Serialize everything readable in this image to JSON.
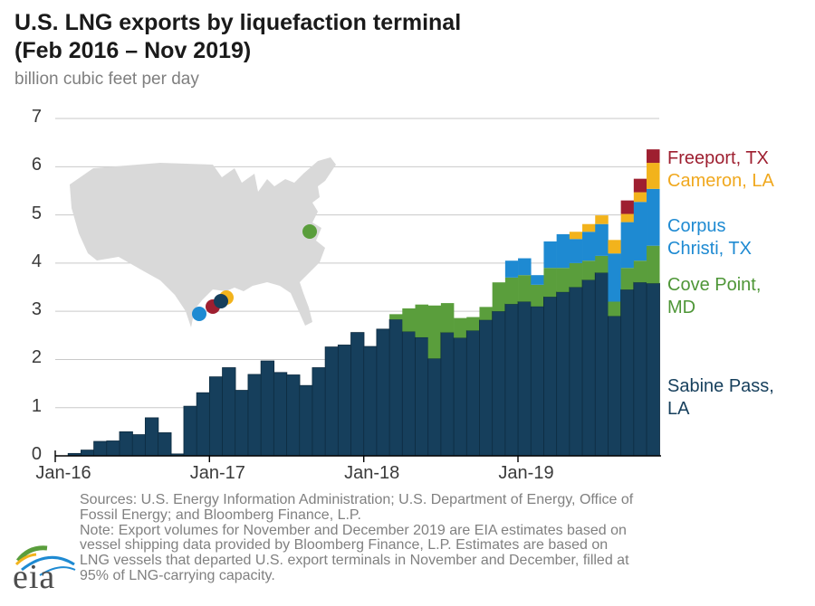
{
  "header": {
    "title_line1": "U.S. LNG exports by liquefaction terminal",
    "title_line2": "(Feb 2016 – Nov 2019)",
    "subtitle": "billion cubic feet per day"
  },
  "legend": {
    "items": [
      {
        "line1": "Freeport, TX",
        "line2": "",
        "color": "#9e1f30"
      },
      {
        "line1": "Cameron, LA",
        "line2": "",
        "color": "#f0a81e"
      },
      {
        "line1": "Corpus",
        "line2": "Christi, TX",
        "color": "#1e8ad2"
      },
      {
        "line1": "Cove Point,",
        "line2": "MD",
        "color": "#4e9637"
      },
      {
        "line1": "Sabine Pass,",
        "line2": "LA",
        "color": "#163f5c"
      }
    ]
  },
  "footer": {
    "lines": [
      "Sources: U.S. Energy Information Administration; U.S. Department of Energy, Office of",
      "Fossil Energy; and Bloomberg Finance, L.P.",
      "Note: Export volumes for November and December 2019 are EIA estimates based on",
      "vessel shipping data provided by Bloomberg Finance, L.P. Estimates are based on",
      "LNG vessels that departed U.S. export terminals in November and December, filled at",
      "95% of LNG-carrying capacity."
    ]
  },
  "logo": {
    "text": "eia"
  },
  "chart_data": {
    "type": "bar",
    "stacked": true,
    "title": "U.S. LNG exports by liquefaction terminal (Feb 2016 – Nov 2019)",
    "ylabel": "billion cubic feet per day",
    "ylim": [
      0,
      7
    ],
    "grid": true,
    "y_ticks": [
      0,
      1,
      2,
      3,
      4,
      5,
      6,
      7
    ],
    "x_tick_labels": [
      "Jan-16",
      "Jan-17",
      "Jan-18",
      "Jan-19"
    ],
    "months": [
      "Feb-16",
      "Mar-16",
      "Apr-16",
      "May-16",
      "Jun-16",
      "Jul-16",
      "Aug-16",
      "Sep-16",
      "Oct-16",
      "Nov-16",
      "Dec-16",
      "Jan-17",
      "Feb-17",
      "Mar-17",
      "Apr-17",
      "May-17",
      "Jun-17",
      "Jul-17",
      "Aug-17",
      "Sep-17",
      "Oct-17",
      "Nov-17",
      "Dec-17",
      "Jan-18",
      "Feb-18",
      "Mar-18",
      "Apr-18",
      "May-18",
      "Jun-18",
      "Jul-18",
      "Aug-18",
      "Sep-18",
      "Oct-18",
      "Nov-18",
      "Dec-18",
      "Jan-19",
      "Feb-19",
      "Mar-19",
      "Apr-19",
      "May-19",
      "Jun-19",
      "Jul-19",
      "Aug-19",
      "Sep-19",
      "Oct-19",
      "Nov-19"
    ],
    "series": [
      {
        "name": "Sabine Pass, LA",
        "color": "#163f5c",
        "values": [
          0.05,
          0.12,
          0.3,
          0.31,
          0.5,
          0.44,
          0.79,
          0.48,
          0.04,
          1.03,
          1.31,
          1.64,
          1.83,
          1.36,
          1.69,
          1.97,
          1.73,
          1.68,
          1.46,
          1.83,
          2.26,
          2.3,
          2.56,
          2.27,
          2.63,
          2.83,
          2.58,
          2.46,
          2.02,
          2.56,
          2.45,
          2.6,
          2.82,
          3.0,
          3.15,
          3.2,
          3.1,
          3.3,
          3.4,
          3.5,
          3.65,
          3.8,
          2.9,
          3.45,
          3.6,
          3.58
        ]
      },
      {
        "name": "Cove Point, MD",
        "color": "#5a9e3c",
        "values": [
          0,
          0,
          0,
          0,
          0,
          0,
          0,
          0,
          0,
          0,
          0,
          0,
          0,
          0,
          0,
          0,
          0,
          0,
          0,
          0,
          0,
          0,
          0,
          0,
          0,
          0.11,
          0.48,
          0.68,
          1.1,
          0.61,
          0.41,
          0.28,
          0.27,
          0.6,
          0.55,
          0.55,
          0.45,
          0.6,
          0.5,
          0.5,
          0.4,
          0.35,
          0.3,
          0.45,
          0.45,
          0.78
        ]
      },
      {
        "name": "Corpus Christi, TX",
        "color": "#1e8ad2",
        "values": [
          0,
          0,
          0,
          0,
          0,
          0,
          0,
          0,
          0,
          0,
          0,
          0,
          0,
          0,
          0,
          0,
          0,
          0,
          0,
          0,
          0,
          0,
          0,
          0,
          0,
          0,
          0,
          0,
          0,
          0,
          0,
          0,
          0,
          0,
          0.35,
          0.35,
          0.2,
          0.55,
          0.7,
          0.5,
          0.6,
          0.66,
          1.0,
          0.95,
          1.22,
          1.18
        ]
      },
      {
        "name": "Cameron, LA",
        "color": "#f2b31c",
        "values": [
          0,
          0,
          0,
          0,
          0,
          0,
          0,
          0,
          0,
          0,
          0,
          0,
          0,
          0,
          0,
          0,
          0,
          0,
          0,
          0,
          0,
          0,
          0,
          0,
          0,
          0,
          0,
          0,
          0,
          0,
          0,
          0,
          0,
          0,
          0,
          0,
          0,
          0,
          0,
          0.15,
          0.16,
          0.18,
          0.28,
          0.17,
          0.2,
          0.54
        ]
      },
      {
        "name": "Freeport, TX",
        "color": "#9e1f30",
        "values": [
          0,
          0,
          0,
          0,
          0,
          0,
          0,
          0,
          0,
          0,
          0,
          0,
          0,
          0,
          0,
          0,
          0,
          0,
          0,
          0,
          0,
          0,
          0,
          0,
          0,
          0,
          0,
          0,
          0,
          0,
          0,
          0,
          0,
          0,
          0,
          0,
          0,
          0,
          0,
          0,
          0,
          0,
          0,
          0.28,
          0.28,
          0.28
        ]
      }
    ],
    "map": {
      "terminals": [
        {
          "name": "Corpus Christi, TX",
          "color": "#1e8ad2"
        },
        {
          "name": "Freeport, TX",
          "color": "#9e1f30"
        },
        {
          "name": "Cameron, LA",
          "color": "#f2b31c"
        },
        {
          "name": "Sabine Pass, LA",
          "color": "#163f5c"
        },
        {
          "name": "Cove Point, MD",
          "color": "#5a9e3c"
        }
      ]
    }
  }
}
